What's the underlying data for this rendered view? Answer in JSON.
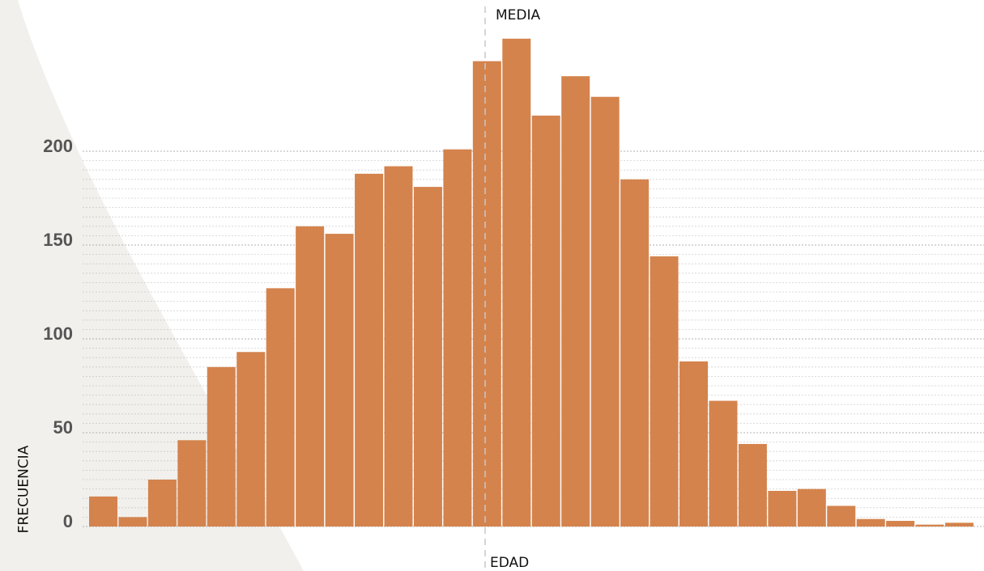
{
  "chart_data": {
    "type": "bar",
    "xlabel": "EDAD",
    "ylabel": "FRECUENCIA",
    "ylim": [
      0,
      256
    ],
    "yticks": [
      0,
      50,
      100,
      150,
      200
    ],
    "grid": true,
    "mean_marker_label": "MEDIA",
    "values": [
      16,
      5,
      25,
      46,
      85,
      93,
      127,
      160,
      156,
      188,
      192,
      181,
      201,
      248,
      260,
      219,
      240,
      229,
      185,
      144,
      88,
      67,
      44,
      19,
      20,
      11,
      4,
      3,
      1,
      2
    ],
    "bar_color": "#d4834d",
    "grid_color": "#aaaaaa",
    "mean_line_color": "#c8c8c8",
    "background_shape_color": "#f2f0ec"
  }
}
